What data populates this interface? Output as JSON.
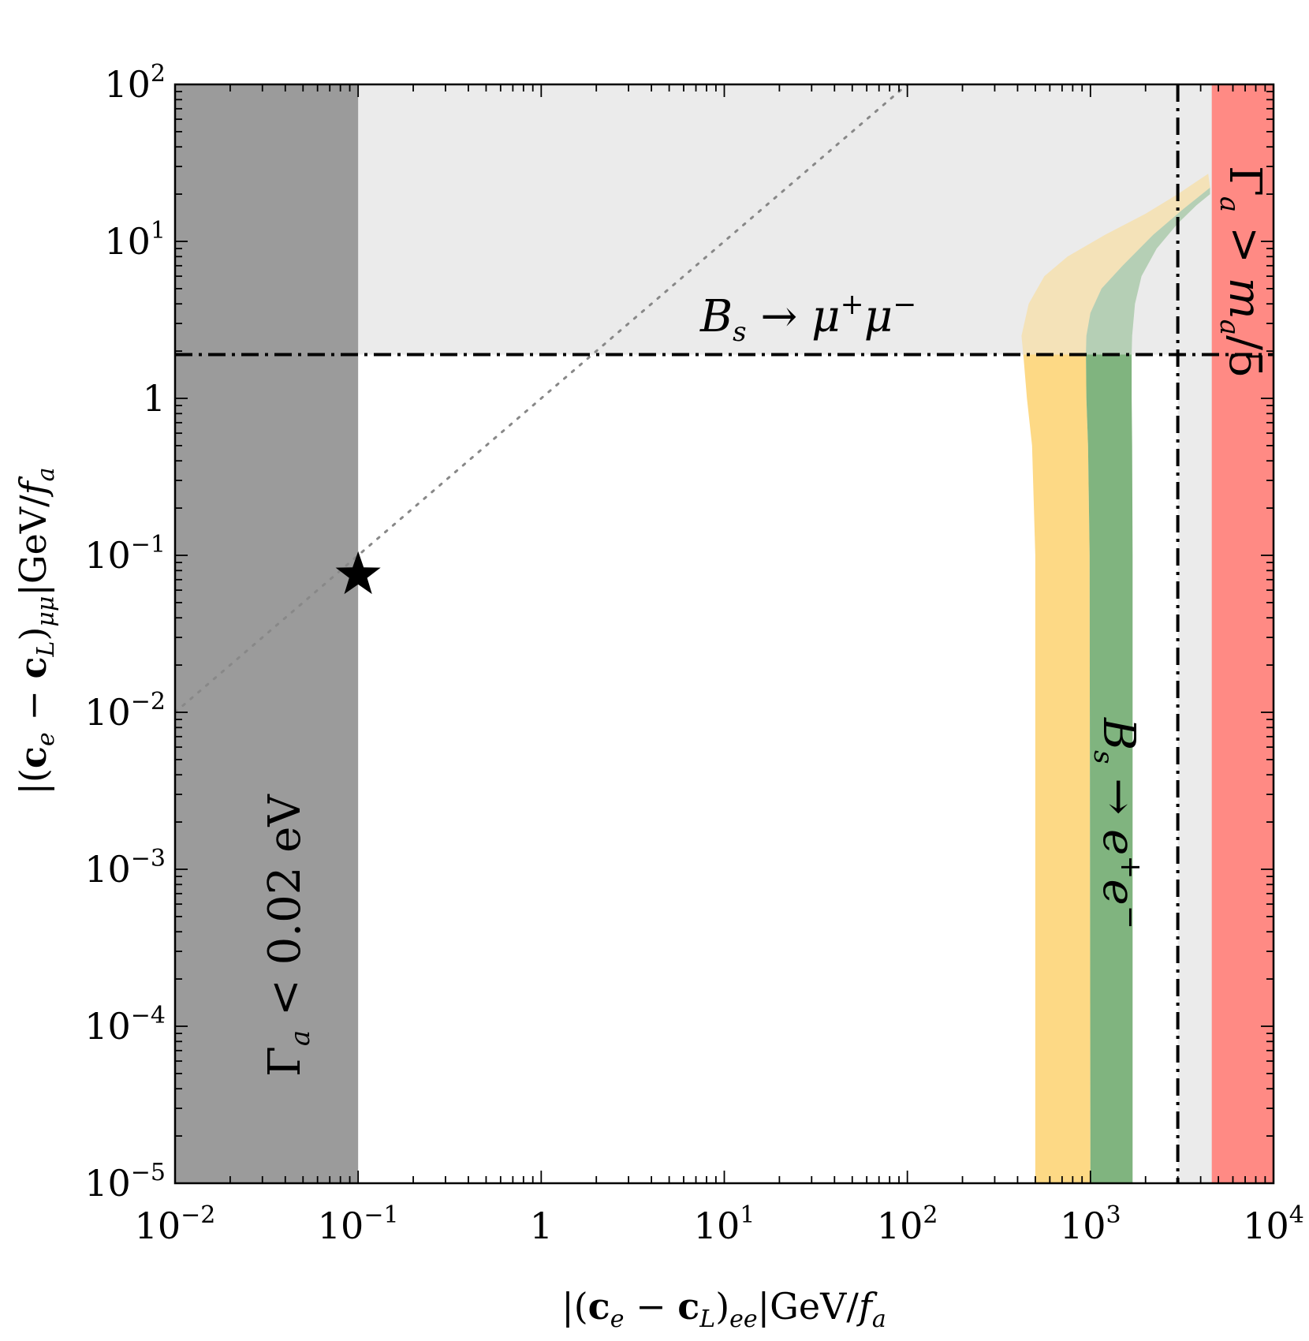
{
  "chart_data": {
    "type": "area",
    "x_scale": "log",
    "y_scale": "log",
    "xlim": [
      0.01,
      10000
    ],
    "ylim": [
      1e-05,
      100
    ],
    "xlabel": {
      "pre": "|(",
      "bold1": "c",
      "sub1": "e",
      "mid": " − ",
      "bold2": "c",
      "sub2": "L",
      "post": ")",
      "sub3": "ee",
      "unit": "|GeV/",
      "fvar": "f",
      "fsub": "a"
    },
    "ylabel": {
      "pre": "|(",
      "bold1": "c",
      "sub1": "e",
      "mid": " − ",
      "bold2": "c",
      "sub2": "L",
      "post": ")",
      "sub3": "μμ",
      "unit": "|GeV/",
      "fvar": "f",
      "fsub": "a"
    },
    "x_ticks": [
      {
        "value": 0.01,
        "base": "10",
        "exp": "−2"
      },
      {
        "value": 0.1,
        "base": "10",
        "exp": "−1"
      },
      {
        "value": 1,
        "base": "1",
        "exp": ""
      },
      {
        "value": 10,
        "base": "10",
        "exp": "1"
      },
      {
        "value": 100,
        "base": "10",
        "exp": "2"
      },
      {
        "value": 1000,
        "base": "10",
        "exp": "3"
      },
      {
        "value": 10000,
        "base": "10",
        "exp": "4"
      }
    ],
    "y_ticks": [
      {
        "value": 1e-05,
        "base": "10",
        "exp": "−5"
      },
      {
        "value": 0.0001,
        "base": "10",
        "exp": "−4"
      },
      {
        "value": 0.001,
        "base": "10",
        "exp": "−3"
      },
      {
        "value": 0.01,
        "base": "10",
        "exp": "−2"
      },
      {
        "value": 0.1,
        "base": "10",
        "exp": "−1"
      },
      {
        "value": 1,
        "base": "1",
        "exp": ""
      },
      {
        "value": 10,
        "base": "10",
        "exp": "1"
      },
      {
        "value": 100,
        "base": "10",
        "exp": "2"
      }
    ],
    "regions": {
      "dark_gray_xmax": 0.1,
      "bsmumu_y": 1.9,
      "bsee_x": 3000,
      "red_xmin": 4600,
      "light_gray_color": "#ebebeb",
      "dark_gray_color": "#9b9b9b",
      "red_color": "#ff8a84",
      "yellow_color": "#fdd985",
      "green_color": "#80b47f"
    },
    "bands": [
      {
        "color": "#fdd985",
        "left": [
          [
            500,
            1e-05
          ],
          [
            500,
            0.1
          ],
          [
            480,
            0.5
          ],
          [
            450,
            1.0
          ],
          [
            430,
            1.9
          ],
          [
            420,
            2.5
          ],
          [
            460,
            4
          ],
          [
            560,
            6
          ],
          [
            750,
            8
          ],
          [
            1200,
            11
          ],
          [
            2000,
            15
          ],
          [
            3000,
            20
          ],
          [
            4400,
            27
          ]
        ],
        "right": [
          [
            1000,
            1e-05
          ],
          [
            990,
            0.1
          ],
          [
            970,
            0.5
          ],
          [
            950,
            1.0
          ],
          [
            945,
            1.9
          ],
          [
            950,
            2.5
          ],
          [
            1000,
            3.5
          ],
          [
            1150,
            5
          ],
          [
            1500,
            7
          ],
          [
            2200,
            11
          ],
          [
            3200,
            16
          ],
          [
            4500,
            22
          ]
        ]
      },
      {
        "color": "#80b47f",
        "left": [
          [
            1000,
            1e-05
          ],
          [
            990,
            0.1
          ],
          [
            970,
            0.5
          ],
          [
            950,
            1.0
          ],
          [
            945,
            1.9
          ],
          [
            950,
            2.5
          ],
          [
            1000,
            3.5
          ],
          [
            1150,
            5
          ],
          [
            1500,
            7
          ],
          [
            2200,
            11
          ],
          [
            3200,
            16
          ],
          [
            4500,
            22
          ]
        ],
        "right": [
          [
            1700,
            1e-05
          ],
          [
            1700,
            0.1
          ],
          [
            1690,
            0.5
          ],
          [
            1680,
            1.0
          ],
          [
            1680,
            1.9
          ],
          [
            1690,
            2.5
          ],
          [
            1750,
            4
          ],
          [
            1900,
            6
          ],
          [
            2300,
            9
          ],
          [
            3000,
            13
          ],
          [
            3800,
            17
          ],
          [
            4500,
            20
          ]
        ]
      }
    ],
    "dotted_line": {
      "points": [
        [
          0.01,
          0.01
        ],
        [
          100,
          100
        ]
      ],
      "color": "#888888"
    },
    "star": {
      "x": 0.1,
      "y": 0.075
    },
    "annotations": {
      "bsmumu": {
        "main": "B",
        "sub": "s",
        "arrow": " → ",
        "l1": "μ",
        "s1": "+",
        "l2": "μ",
        "s2": "−"
      },
      "bsee": {
        "main": "B",
        "sub": "s",
        "arrow": " → ",
        "l1": "e",
        "s1": "+",
        "l2": "e",
        "s2": "−"
      },
      "gamma_low": {
        "g": "Γ",
        "sub": "a",
        "rel": " < 0.02 eV"
      },
      "gamma_high": {
        "g": "Γ",
        "sub": "a",
        "rel": " > ",
        "m": "m",
        "msub": "a",
        "tail": "/5"
      }
    }
  }
}
